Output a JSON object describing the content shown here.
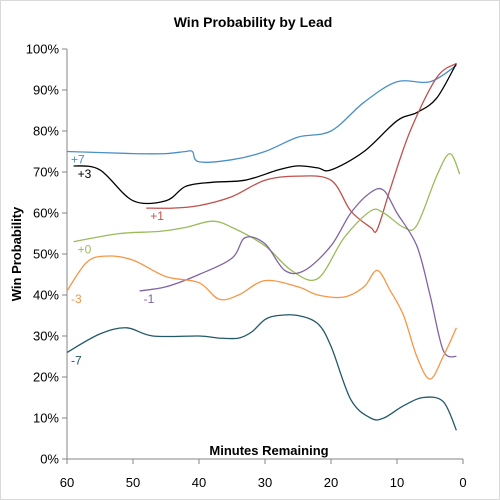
{
  "chart_data": {
    "type": "line",
    "title": "Win Probability by Lead",
    "xlabel": "Minutes Remaining",
    "ylabel": "Win Probability",
    "xlim": [
      60,
      0
    ],
    "ylim": [
      0,
      1
    ],
    "x_ticks": [
      60,
      50,
      40,
      30,
      20,
      10,
      0
    ],
    "x_tick_labels": [
      "60",
      "50",
      "40",
      "30",
      "20",
      "10",
      "0"
    ],
    "y_ticks": [
      0,
      0.1,
      0.2,
      0.3,
      0.4,
      0.5,
      0.6,
      0.7,
      0.8,
      0.9,
      1.0
    ],
    "y_tick_labels": [
      "0%",
      "10%",
      "20%",
      "30%",
      "40%",
      "50%",
      "60%",
      "70%",
      "80%",
      "90%",
      "100%"
    ],
    "grid": false,
    "legend": "none",
    "series": [
      {
        "name": "+7",
        "color": "#4a90c8",
        "x": [
          60,
          50,
          45,
          42,
          41,
          40,
          35,
          30,
          25,
          20,
          15,
          10,
          5,
          1
        ],
        "y": [
          0.75,
          0.745,
          0.745,
          0.75,
          0.75,
          0.725,
          0.73,
          0.75,
          0.785,
          0.8,
          0.87,
          0.92,
          0.92,
          0.96
        ]
      },
      {
        "name": "+3",
        "color": "#000000",
        "x": [
          59,
          55,
          50,
          45,
          42,
          38,
          33,
          28,
          25,
          22,
          20,
          15,
          10,
          7,
          4,
          1
        ],
        "y": [
          0.715,
          0.705,
          0.63,
          0.63,
          0.665,
          0.675,
          0.68,
          0.705,
          0.715,
          0.71,
          0.705,
          0.75,
          0.825,
          0.845,
          0.88,
          0.965
        ]
      },
      {
        "name": "+1",
        "color": "#c0504d",
        "x": [
          48,
          44,
          40,
          35,
          30,
          25,
          20,
          17,
          14,
          13,
          11,
          8,
          4,
          1
        ],
        "y": [
          0.612,
          0.612,
          0.618,
          0.64,
          0.68,
          0.69,
          0.68,
          0.605,
          0.565,
          0.56,
          0.66,
          0.8,
          0.93,
          0.965
        ]
      },
      {
        "name": "+0",
        "color": "#9bbb59",
        "x": [
          59,
          52,
          46,
          42,
          38,
          35,
          30,
          26,
          22,
          18,
          14,
          12,
          9,
          7,
          4,
          2,
          0.5
        ],
        "y": [
          0.53,
          0.55,
          0.555,
          0.565,
          0.58,
          0.565,
          0.52,
          0.46,
          0.44,
          0.54,
          0.605,
          0.6,
          0.565,
          0.57,
          0.69,
          0.745,
          0.695
        ]
      },
      {
        "name": "-1",
        "color": "#8064a2",
        "x": [
          49,
          45,
          40,
          35,
          33,
          30,
          27,
          24,
          20,
          17,
          14,
          12,
          10,
          7,
          5,
          3,
          1
        ],
        "y": [
          0.41,
          0.42,
          0.45,
          0.49,
          0.54,
          0.525,
          0.46,
          0.46,
          0.52,
          0.6,
          0.65,
          0.655,
          0.6,
          0.52,
          0.4,
          0.265,
          0.25
        ]
      },
      {
        "name": "-3",
        "color": "#f79646",
        "x": [
          60,
          57,
          54,
          50,
          45,
          40,
          37,
          34,
          30,
          25,
          22,
          18,
          15,
          13,
          11,
          9,
          7,
          5,
          3,
          1
        ],
        "y": [
          0.41,
          0.48,
          0.495,
          0.485,
          0.445,
          0.43,
          0.39,
          0.4,
          0.435,
          0.42,
          0.4,
          0.395,
          0.42,
          0.46,
          0.41,
          0.35,
          0.25,
          0.195,
          0.25,
          0.32
        ]
      },
      {
        "name": "-7",
        "color": "#215968",
        "x": [
          60,
          55,
          51,
          47,
          40,
          37,
          34,
          32,
          30,
          28,
          25,
          22,
          20,
          17,
          14,
          12,
          9,
          6,
          3,
          1
        ],
        "y": [
          0.26,
          0.305,
          0.32,
          0.3,
          0.3,
          0.295,
          0.295,
          0.31,
          0.34,
          0.35,
          0.35,
          0.33,
          0.275,
          0.145,
          0.1,
          0.1,
          0.13,
          0.15,
          0.14,
          0.07
        ]
      }
    ]
  }
}
